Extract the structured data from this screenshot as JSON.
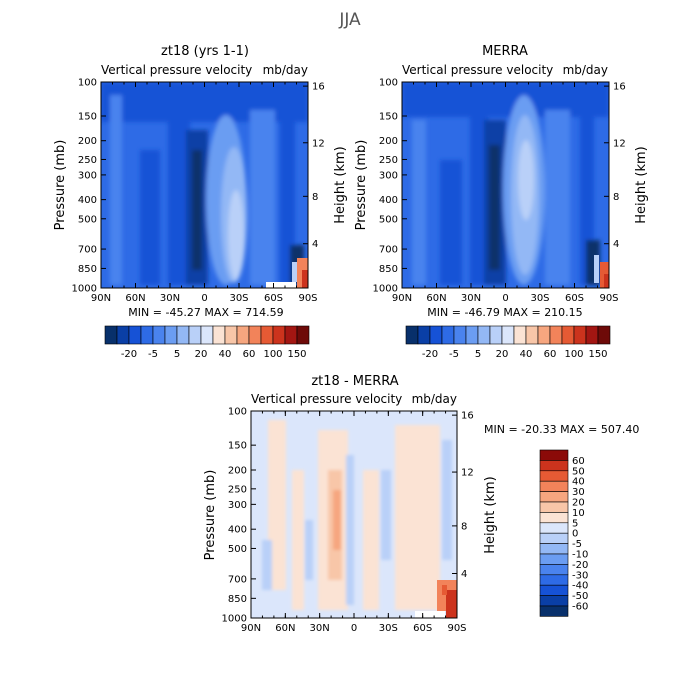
{
  "figure": {
    "title": "JJA"
  },
  "colors": {
    "panel_negative_to_positive": [
      "#08306b",
      "#0a3fa6",
      "#1652d6",
      "#2e6be6",
      "#4a83ee",
      "#6b9df2",
      "#93b8f5",
      "#b9d0f8",
      "#dbe6fb",
      "#fbe3d4",
      "#f8c6a8",
      "#f6a67f",
      "#f2835a",
      "#e65a34",
      "#cc331d",
      "#a31612",
      "#6e0a08"
    ],
    "diff_scale": [
      "#08306b",
      "#0a3fa6",
      "#1652d6",
      "#2e6be6",
      "#4a83ee",
      "#6b9df2",
      "#93b8f5",
      "#b9d0f8",
      "#dbe6fb",
      "#fbe3d4",
      "#f8c6a8",
      "#f6a67f",
      "#f2835a",
      "#e65a34",
      "#cc331d",
      "#8b0a08"
    ]
  },
  "chart_data": [
    {
      "type": "heatmap",
      "panel": "model",
      "title": "zt18 (yrs 1-1)",
      "subtitle_left": "Vertical pressure velocity",
      "subtitle_right": "mb/day",
      "xlabel": "",
      "ylabel": "Pressure (mb)",
      "ylabel_right": "Height (km)",
      "x_ticks": [
        "90N",
        "60N",
        "30N",
        "0",
        "30S",
        "60S",
        "90S"
      ],
      "y_ticks": [
        "100",
        "150",
        "200",
        "250",
        "300",
        "400",
        "500",
        "700",
        "850",
        "1000"
      ],
      "height_ticks": [
        "16",
        "12",
        "8",
        "4"
      ],
      "stats": "MIN = -45.27   MAX = 714.59",
      "min": -45.27,
      "max": 714.59,
      "colorbar_labels": [
        "-20",
        "-5",
        "5",
        "20",
        "40",
        "60",
        "100",
        "150"
      ]
    },
    {
      "type": "heatmap",
      "panel": "reanalysis",
      "title": "MERRA",
      "subtitle_left": "Vertical pressure velocity",
      "subtitle_right": "mb/day",
      "xlabel": "",
      "ylabel": "Pressure (mb)",
      "ylabel_right": "Height (km)",
      "x_ticks": [
        "90N",
        "60N",
        "30N",
        "0",
        "30S",
        "60S",
        "90S"
      ],
      "y_ticks": [
        "100",
        "150",
        "200",
        "250",
        "300",
        "400",
        "500",
        "700",
        "850",
        "1000"
      ],
      "height_ticks": [
        "16",
        "12",
        "8",
        "4"
      ],
      "stats": "MIN = -46.79   MAX = 210.15",
      "min": -46.79,
      "max": 210.15,
      "colorbar_labels": [
        "-20",
        "-5",
        "5",
        "20",
        "40",
        "60",
        "100",
        "150"
      ]
    },
    {
      "type": "heatmap",
      "panel": "difference",
      "title": "zt18 - MERRA",
      "subtitle_left": "Vertical pressure velocity",
      "subtitle_right": "mb/day",
      "xlabel": "",
      "ylabel": "Pressure (mb)",
      "ylabel_right": "Height (km)",
      "x_ticks": [
        "90N",
        "60N",
        "30N",
        "0",
        "30S",
        "60S",
        "90S"
      ],
      "y_ticks": [
        "100",
        "150",
        "200",
        "250",
        "300",
        "400",
        "500",
        "700",
        "850",
        "1000"
      ],
      "height_ticks": [
        "16",
        "12",
        "8",
        "4"
      ],
      "stats": "MIN = -20.33   MAX = 507.40",
      "min": -20.33,
      "max": 507.4,
      "colorbar_labels": [
        "60",
        "50",
        "40",
        "30",
        "20",
        "10",
        "5",
        "0",
        "-5",
        "-10",
        "-20",
        "-30",
        "-40",
        "-50",
        "-60"
      ]
    }
  ]
}
